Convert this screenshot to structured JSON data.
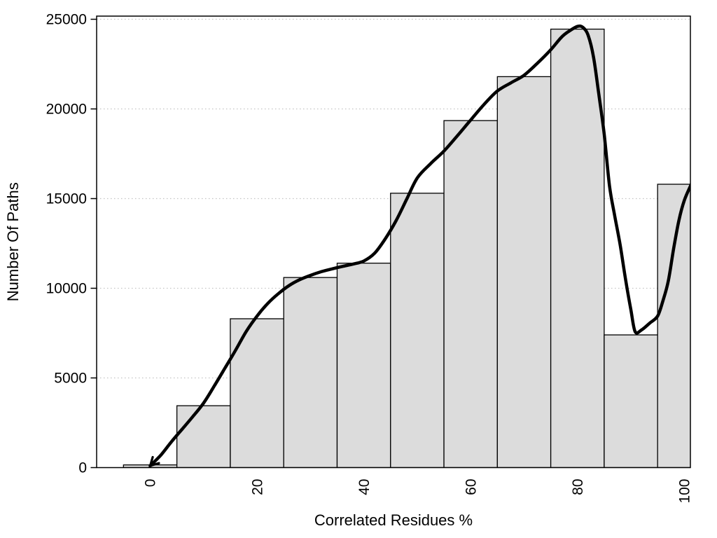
{
  "chart_data": {
    "type": "bar",
    "subtype": "histogram-with-density-curve",
    "title": "",
    "xlabel": "Correlated Residues %",
    "ylabel": "Number Of Paths",
    "bin_width": 10,
    "categories": [
      0,
      10,
      20,
      30,
      40,
      50,
      60,
      70,
      80,
      90,
      100
    ],
    "values": [
      150,
      3450,
      8300,
      10600,
      11400,
      15300,
      19350,
      21800,
      24450,
      7400,
      15800
    ],
    "x_ticks": [
      0,
      20,
      40,
      60,
      80,
      100
    ],
    "y_ticks": [
      0,
      5000,
      10000,
      15000,
      20000,
      25000
    ],
    "xlim": [
      -10,
      101.3
    ],
    "ylim": [
      0,
      25000
    ],
    "grid": "horizontal-dotted-at-y-ticks",
    "legend": "none",
    "x_tick_label_rotation_deg": -90,
    "series": [
      {
        "name": "path-count-histogram",
        "type": "bar",
        "values": [
          150,
          3450,
          8300,
          10600,
          11400,
          15300,
          19350,
          21800,
          24450,
          7400,
          15800
        ]
      },
      {
        "name": "density-curve",
        "type": "line",
        "arrow_at_start": true,
        "points": [
          [
            0,
            100
          ],
          [
            2,
            700
          ],
          [
            4,
            1450
          ],
          [
            6,
            2150
          ],
          [
            8,
            2850
          ],
          [
            10,
            3600
          ],
          [
            12,
            4550
          ],
          [
            14,
            5550
          ],
          [
            16,
            6550
          ],
          [
            18,
            7600
          ],
          [
            20,
            8450
          ],
          [
            22,
            9150
          ],
          [
            24,
            9700
          ],
          [
            26,
            10150
          ],
          [
            28,
            10480
          ],
          [
            30,
            10720
          ],
          [
            32,
            10920
          ],
          [
            34,
            11080
          ],
          [
            36,
            11220
          ],
          [
            38,
            11350
          ],
          [
            40,
            11520
          ],
          [
            42,
            11950
          ],
          [
            44,
            12750
          ],
          [
            46,
            13750
          ],
          [
            48,
            14950
          ],
          [
            50,
            16150
          ],
          [
            52.5,
            16950
          ],
          [
            55,
            17650
          ],
          [
            57.5,
            18500
          ],
          [
            60,
            19380
          ],
          [
            62.5,
            20250
          ],
          [
            65,
            21000
          ],
          [
            67.5,
            21450
          ],
          [
            70,
            21880
          ],
          [
            72.5,
            22550
          ],
          [
            75,
            23300
          ],
          [
            77,
            24000
          ],
          [
            78.5,
            24350
          ],
          [
            80,
            24600
          ],
          [
            81,
            24550
          ],
          [
            82,
            24100
          ],
          [
            83,
            22900
          ],
          [
            84,
            20800
          ],
          [
            85,
            18600
          ],
          [
            86,
            15700
          ],
          [
            87,
            14000
          ],
          [
            88,
            12400
          ],
          [
            89,
            10500
          ],
          [
            90,
            8800
          ],
          [
            90.8,
            7580
          ],
          [
            92,
            7680
          ],
          [
            93.5,
            8050
          ],
          [
            95,
            8450
          ],
          [
            96,
            9300
          ],
          [
            97,
            10400
          ],
          [
            98,
            12200
          ],
          [
            99,
            13800
          ],
          [
            100,
            14900
          ],
          [
            101.3,
            15800
          ]
        ]
      }
    ]
  },
  "colors": {
    "background": "#ffffff",
    "bar_fill": "#dcdcdc",
    "bar_border": "#000000",
    "curve": "#000000",
    "gridline": "#c3c3c3",
    "axis": "#000000",
    "text": "#000000"
  }
}
